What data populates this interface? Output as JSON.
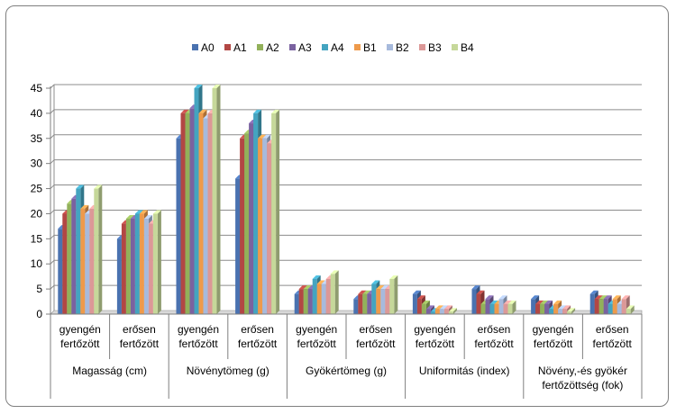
{
  "chart_data": {
    "type": "bar",
    "title": "",
    "xlabel": "",
    "ylabel": "",
    "ylim": [
      0,
      45
    ],
    "yticks": [
      0,
      5,
      10,
      15,
      20,
      25,
      30,
      35,
      40,
      45
    ],
    "grid": true,
    "legend": {
      "position": "top"
    },
    "groups": [
      {
        "name_lines": [
          "Magasság (cm)"
        ],
        "categories": [
          [
            "gyengén",
            "fertőzött"
          ],
          [
            "erősen",
            "fertőzött"
          ]
        ]
      },
      {
        "name_lines": [
          "Növénytömeg (g)"
        ],
        "categories": [
          [
            "gyengén",
            "fertőzött"
          ],
          [
            "erősen",
            "fertőzött"
          ]
        ]
      },
      {
        "name_lines": [
          "Gyökértömeg (g)"
        ],
        "categories": [
          [
            "gyengén",
            "fertőzött"
          ],
          [
            "erősen",
            "fertőzött"
          ]
        ]
      },
      {
        "name_lines": [
          "Uniformitás (index)"
        ],
        "categories": [
          [
            "gyengén",
            "fertőzött"
          ],
          [
            "erősen",
            "fertőzött"
          ]
        ]
      },
      {
        "name_lines": [
          "Növény,-és gyökér",
          "fertőzöttség (fok)"
        ],
        "categories": [
          [
            "gyengén",
            "fertőzött"
          ],
          [
            "erősen",
            "fertőzött"
          ]
        ]
      }
    ],
    "series": [
      {
        "name": "A0",
        "color": "#4a72b0",
        "values": [
          17,
          15,
          35,
          27,
          4,
          3,
          4,
          5,
          3,
          4
        ]
      },
      {
        "name": "A1",
        "color": "#b24744",
        "values": [
          20,
          18,
          40,
          35,
          5,
          4,
          3,
          4,
          2,
          3
        ]
      },
      {
        "name": "A2",
        "color": "#92b15a",
        "values": [
          22,
          19,
          40,
          36,
          5,
          4,
          2,
          2,
          2,
          3
        ]
      },
      {
        "name": "A3",
        "color": "#7a62a0",
        "values": [
          23,
          19,
          41,
          38,
          5,
          4,
          1,
          3,
          2,
          3
        ]
      },
      {
        "name": "A4",
        "color": "#44a4c0",
        "values": [
          25,
          20,
          45,
          40,
          7,
          6,
          0.5,
          2,
          1,
          2
        ]
      },
      {
        "name": "B1",
        "color": "#ee9a4b",
        "values": [
          21,
          20,
          40,
          35,
          6,
          5,
          1,
          2,
          2,
          3
        ]
      },
      {
        "name": "B2",
        "color": "#a7badc",
        "values": [
          20,
          19,
          39,
          35,
          6,
          5,
          1,
          3,
          1,
          2
        ]
      },
      {
        "name": "B3",
        "color": "#dc9897",
        "values": [
          21,
          18,
          40,
          34,
          7,
          5,
          1,
          2,
          1,
          3
        ]
      },
      {
        "name": "B4",
        "color": "#c6d89a",
        "values": [
          25,
          20,
          45,
          40,
          8,
          7,
          0.5,
          2,
          0.5,
          1
        ]
      }
    ]
  }
}
